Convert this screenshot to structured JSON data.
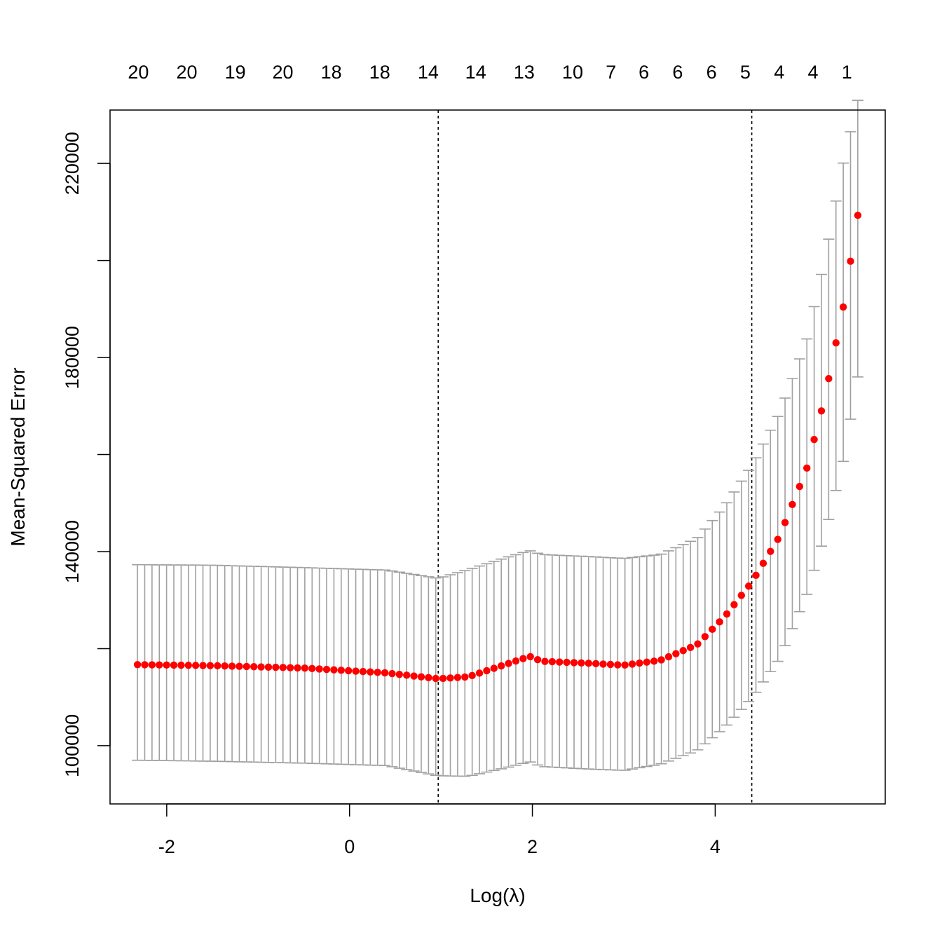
{
  "chart_data": {
    "type": "scatter",
    "title": "",
    "xlabel": "Log(λ)",
    "ylabel": "Mean-Squared Error",
    "xlim": [
      -2.62,
      5.86
    ],
    "ylim": [
      88000,
      231000
    ],
    "x_ticks": [
      -2,
      0,
      2,
      4
    ],
    "y_ticks": [
      100000,
      140000,
      180000,
      220000
    ],
    "y_ticks_unlabeled": [
      120000,
      160000,
      200000
    ],
    "top_axis": {
      "x": [
        -2.31,
        -1.78,
        -1.25,
        -0.73,
        -0.2,
        0.33,
        0.86,
        1.38,
        1.91,
        2.44,
        2.86,
        3.22,
        3.59,
        3.96,
        4.33,
        4.7,
        5.07,
        5.44
      ],
      "labels": [
        "20",
        "20",
        "19",
        "20",
        "18",
        "18",
        "14",
        "14",
        "13",
        "10",
        "7",
        "6",
        "6",
        "6",
        "5",
        "4",
        "4",
        "1"
      ]
    },
    "reference_lines": [
      {
        "name": "lambda.min",
        "x": 0.97
      },
      {
        "name": "lambda.1se",
        "x": 4.4
      }
    ],
    "series": [
      {
        "color": "#ff0000",
        "errorbar_color": "#a0a0a0",
        "knots": [
          {
            "x": -2.32,
            "y": 116700,
            "lo": 97000,
            "hi": 137300
          },
          {
            "x": -1.5,
            "y": 116500,
            "lo": 96800,
            "hi": 137200
          },
          {
            "x": -0.5,
            "y": 116000,
            "lo": 96400,
            "hi": 136700
          },
          {
            "x": 0.4,
            "y": 115000,
            "lo": 95900,
            "hi": 136200
          },
          {
            "x": 0.97,
            "y": 113800,
            "lo": 93800,
            "hi": 134500
          },
          {
            "x": 1.3,
            "y": 114200,
            "lo": 93700,
            "hi": 136300
          },
          {
            "x": 1.7,
            "y": 116700,
            "lo": 95400,
            "hi": 138700
          },
          {
            "x": 1.97,
            "y": 118400,
            "lo": 96700,
            "hi": 140200
          },
          {
            "x": 2.1,
            "y": 117400,
            "lo": 95700,
            "hi": 139400
          },
          {
            "x": 2.6,
            "y": 117000,
            "lo": 95200,
            "hi": 139000
          },
          {
            "x": 3.0,
            "y": 116600,
            "lo": 94900,
            "hi": 138600
          },
          {
            "x": 3.4,
            "y": 117600,
            "lo": 96200,
            "hi": 139400
          },
          {
            "x": 3.8,
            "y": 120800,
            "lo": 99000,
            "hi": 142700
          },
          {
            "x": 4.1,
            "y": 126500,
            "lo": 103700,
            "hi": 149300
          },
          {
            "x": 4.4,
            "y": 133700,
            "lo": 109800,
            "hi": 157700
          },
          {
            "x": 4.7,
            "y": 143000,
            "lo": 117800,
            "hi": 168400
          },
          {
            "x": 5.0,
            "y": 157000,
            "lo": 131000,
            "hi": 183600
          },
          {
            "x": 5.2,
            "y": 171800,
            "lo": 143500,
            "hi": 200300
          },
          {
            "x": 5.4,
            "y": 190300,
            "lo": 158500,
            "hi": 220000
          },
          {
            "x": 5.56,
            "y": 209300,
            "lo": 176000,
            "hi": 233000
          }
        ],
        "n_points": 100
      }
    ]
  }
}
